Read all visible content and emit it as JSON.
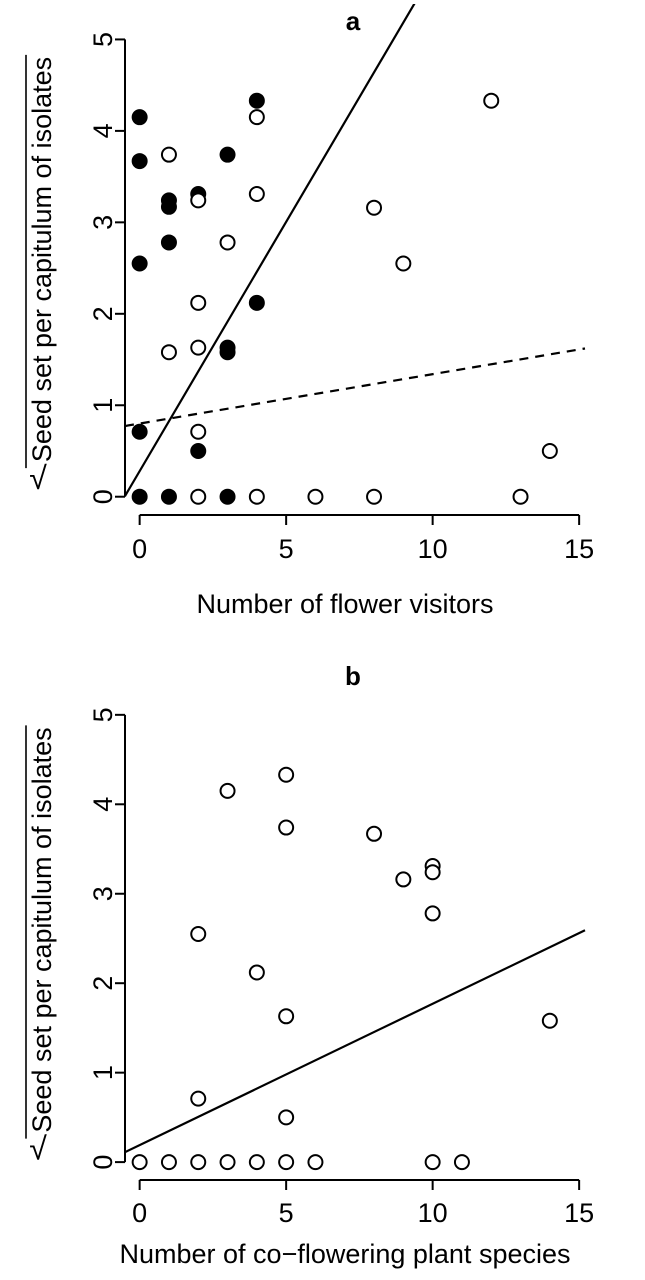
{
  "chart_data": [
    {
      "type": "scatter",
      "panel_label": "a",
      "xlabel": "Number of flower visitors",
      "ylabel_radical": "√",
      "ylabel": "Seed set per capitulum of isolates",
      "xlim": [
        -0.5,
        15.2
      ],
      "ylim": [
        -0.2,
        5.3
      ],
      "xticks": [
        0,
        5,
        10,
        15
      ],
      "yticks": [
        0,
        1,
        2,
        3,
        4,
        5
      ],
      "grid": false,
      "series": [
        {
          "marker": "filled-circle",
          "color": "#000000",
          "points": [
            [
              0,
              4.15
            ],
            [
              0,
              3.67
            ],
            [
              0,
              2.55
            ],
            [
              0,
              0.71
            ],
            [
              0,
              0
            ],
            [
              1,
              3.24
            ],
            [
              1,
              3.17
            ],
            [
              1,
              2.78
            ],
            [
              1,
              0
            ],
            [
              2,
              3.31
            ],
            [
              2,
              0.5
            ],
            [
              3,
              3.74
            ],
            [
              3,
              1.63
            ],
            [
              3,
              1.58
            ],
            [
              3,
              0
            ],
            [
              4,
              4.33
            ],
            [
              4,
              2.12
            ]
          ]
        },
        {
          "marker": "open-circle",
          "color": "#000000",
          "points": [
            [
              1,
              3.74
            ],
            [
              1,
              1.58
            ],
            [
              2,
              3.24
            ],
            [
              2,
              2.12
            ],
            [
              2,
              1.63
            ],
            [
              2,
              0.71
            ],
            [
              2,
              0
            ],
            [
              3,
              2.78
            ],
            [
              4,
              4.15
            ],
            [
              4,
              3.31
            ],
            [
              4,
              0
            ],
            [
              6,
              0
            ],
            [
              8,
              3.16
            ],
            [
              8,
              0
            ],
            [
              9,
              2.55
            ],
            [
              12,
              4.33
            ],
            [
              13,
              0
            ],
            [
              14,
              0.5
            ]
          ]
        }
      ],
      "fit_lines": [
        {
          "style": "solid",
          "intercept": 0.28,
          "slope": 0.545
        },
        {
          "style": "dashed",
          "intercept": 0.8,
          "slope": 0.054
        }
      ]
    },
    {
      "type": "scatter",
      "panel_label": "b",
      "xlabel": "Number of co−flowering plant species",
      "ylabel_radical": "√",
      "ylabel": "Seed set per capitulum of isolates",
      "xlim": [
        -0.5,
        15.2
      ],
      "ylim": [
        -0.2,
        5.3
      ],
      "xticks": [
        0,
        5,
        10,
        15
      ],
      "yticks": [
        0,
        1,
        2,
        3,
        4,
        5
      ],
      "grid": false,
      "series": [
        {
          "marker": "open-circle",
          "color": "#000000",
          "points": [
            [
              0,
              0
            ],
            [
              1,
              0
            ],
            [
              2,
              0
            ],
            [
              3,
              0
            ],
            [
              4,
              0
            ],
            [
              5,
              0
            ],
            [
              6,
              0
            ],
            [
              2,
              2.55
            ],
            [
              2,
              0.71
            ],
            [
              3,
              4.15
            ],
            [
              4,
              2.12
            ],
            [
              5,
              4.33
            ],
            [
              5,
              3.74
            ],
            [
              5,
              1.63
            ],
            [
              5,
              0.5
            ],
            [
              8,
              3.67
            ],
            [
              9,
              3.16
            ],
            [
              10,
              3.31
            ],
            [
              10,
              3.24
            ],
            [
              10,
              2.78
            ],
            [
              10,
              0
            ],
            [
              11,
              0
            ],
            [
              14,
              1.58
            ]
          ]
        }
      ],
      "fit_lines": [
        {
          "style": "solid",
          "intercept": 0.19,
          "slope": 0.158
        }
      ]
    }
  ]
}
